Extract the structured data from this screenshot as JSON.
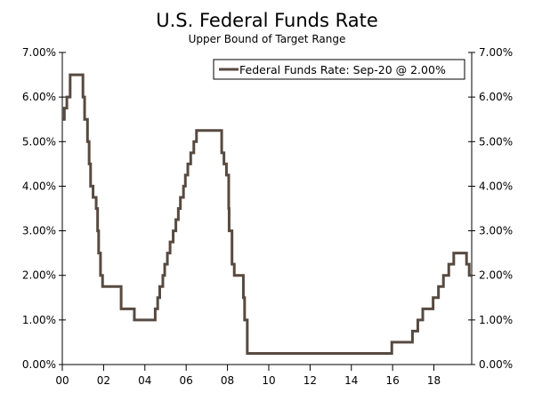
{
  "chart_data": {
    "type": "line",
    "title": "U.S. Federal Funds Rate",
    "subtitle": "Upper Bound of Target Range",
    "xlabel": "",
    "ylabel": "",
    "xlim": [
      2000,
      2019.83
    ],
    "ylim": [
      0,
      7
    ],
    "x_ticks": [
      {
        "v": 2000,
        "label": "00"
      },
      {
        "v": 2002,
        "label": "02"
      },
      {
        "v": 2004,
        "label": "04"
      },
      {
        "v": 2006,
        "label": "06"
      },
      {
        "v": 2008,
        "label": "08"
      },
      {
        "v": 2010,
        "label": "10"
      },
      {
        "v": 2012,
        "label": "12"
      },
      {
        "v": 2014,
        "label": "14"
      },
      {
        "v": 2016,
        "label": "16"
      },
      {
        "v": 2018,
        "label": "18"
      }
    ],
    "y_ticks": [
      {
        "v": 0,
        "label": "0.00%"
      },
      {
        "v": 1,
        "label": "1.00%"
      },
      {
        "v": 2,
        "label": "2.00%"
      },
      {
        "v": 3,
        "label": "3.00%"
      },
      {
        "v": 4,
        "label": "4.00%"
      },
      {
        "v": 5,
        "label": "5.00%"
      },
      {
        "v": 6,
        "label": "6.00%"
      },
      {
        "v": 7,
        "label": "7.00%"
      }
    ],
    "grid": false,
    "legend": {
      "position": "top-right",
      "entries": [
        "Federal Funds Rate: Sep-20 @ 2.00%"
      ]
    },
    "series": [
      {
        "name": "Federal Funds Rate: Sep-20 @ 2.00%",
        "color": "#574a40",
        "step": true,
        "points": [
          [
            2000.0,
            5.5
          ],
          [
            2000.1,
            5.75
          ],
          [
            2000.22,
            6.0
          ],
          [
            2000.38,
            6.5
          ],
          [
            2001.0,
            6.0
          ],
          [
            2001.08,
            5.5
          ],
          [
            2001.22,
            5.0
          ],
          [
            2001.3,
            4.5
          ],
          [
            2001.37,
            4.0
          ],
          [
            2001.49,
            3.75
          ],
          [
            2001.64,
            3.5
          ],
          [
            2001.71,
            3.0
          ],
          [
            2001.76,
            2.5
          ],
          [
            2001.85,
            2.0
          ],
          [
            2001.95,
            1.75
          ],
          [
            2002.85,
            1.25
          ],
          [
            2003.49,
            1.0
          ],
          [
            2004.5,
            1.25
          ],
          [
            2004.62,
            1.5
          ],
          [
            2004.72,
            1.75
          ],
          [
            2004.87,
            2.0
          ],
          [
            2004.96,
            2.25
          ],
          [
            2005.09,
            2.5
          ],
          [
            2005.22,
            2.75
          ],
          [
            2005.37,
            3.0
          ],
          [
            2005.5,
            3.25
          ],
          [
            2005.62,
            3.5
          ],
          [
            2005.72,
            3.75
          ],
          [
            2005.87,
            4.0
          ],
          [
            2005.96,
            4.25
          ],
          [
            2006.08,
            4.5
          ],
          [
            2006.22,
            4.75
          ],
          [
            2006.37,
            5.0
          ],
          [
            2006.5,
            5.25
          ],
          [
            2007.72,
            4.75
          ],
          [
            2007.83,
            4.5
          ],
          [
            2007.95,
            4.25
          ],
          [
            2008.06,
            3.5
          ],
          [
            2008.08,
            3.0
          ],
          [
            2008.22,
            2.25
          ],
          [
            2008.33,
            2.0
          ],
          [
            2008.77,
            1.5
          ],
          [
            2008.83,
            1.0
          ],
          [
            2008.96,
            0.25
          ],
          [
            2015.96,
            0.5
          ],
          [
            2016.96,
            0.75
          ],
          [
            2017.22,
            1.0
          ],
          [
            2017.46,
            1.25
          ],
          [
            2017.96,
            1.5
          ],
          [
            2018.22,
            1.75
          ],
          [
            2018.46,
            2.0
          ],
          [
            2018.72,
            2.25
          ],
          [
            2018.96,
            2.5
          ],
          [
            2019.58,
            2.25
          ],
          [
            2019.71,
            2.0
          ],
          [
            2019.83,
            2.0
          ]
        ]
      }
    ]
  }
}
